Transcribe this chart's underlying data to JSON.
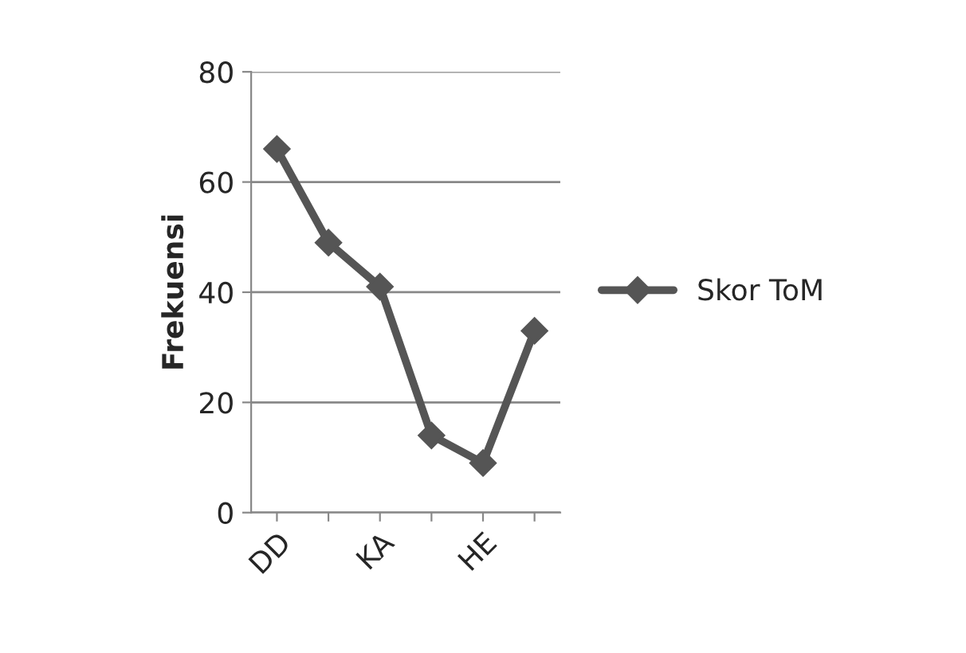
{
  "chart_data": {
    "type": "line",
    "ylabel": "Frekuensi",
    "categories": [
      "DD",
      null,
      "KA",
      null,
      "HE",
      null
    ],
    "series": [
      {
        "name": "Skor ToM",
        "color": "#555555",
        "values": [
          66,
          49,
          41,
          14,
          9,
          33
        ]
      }
    ],
    "ylim": [
      0,
      80
    ],
    "yticks": [
      0,
      20,
      40,
      60,
      80
    ],
    "grid": "y",
    "legend": "right",
    "marker": "diamond",
    "line_style": "solid"
  }
}
